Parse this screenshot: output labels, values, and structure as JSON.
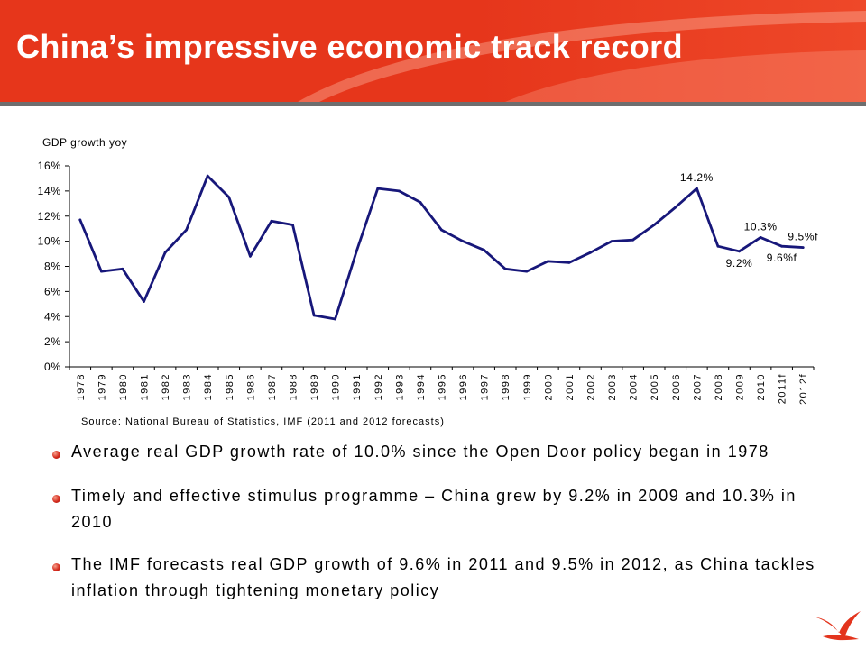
{
  "slide": {
    "title": "China’s impressive economic track record"
  },
  "chart_data": {
    "type": "line",
    "ylabel": "GDP growth yoy",
    "categories": [
      "1978",
      "1979",
      "1980",
      "1981",
      "1982",
      "1983",
      "1984",
      "1985",
      "1986",
      "1987",
      "1988",
      "1989",
      "1990",
      "1991",
      "1992",
      "1993",
      "1994",
      "1995",
      "1996",
      "1997",
      "1998",
      "1999",
      "2000",
      "2001",
      "2002",
      "2003",
      "2004",
      "2005",
      "2006",
      "2007",
      "2008",
      "2009",
      "2010",
      "2011f",
      "2012f"
    ],
    "values": [
      11.7,
      7.6,
      7.8,
      5.2,
      9.1,
      10.9,
      15.2,
      13.5,
      8.8,
      11.6,
      11.3,
      4.1,
      3.8,
      9.2,
      14.2,
      14.0,
      13.1,
      10.9,
      10.0,
      9.3,
      7.8,
      7.6,
      8.4,
      8.3,
      9.1,
      10.0,
      10.1,
      11.3,
      12.7,
      14.2,
      9.6,
      9.2,
      10.3,
      9.6,
      9.5
    ],
    "ylim": [
      0,
      16
    ],
    "yticks": [
      {
        "value": 0,
        "label": "0%"
      },
      {
        "value": 2,
        "label": "2%"
      },
      {
        "value": 4,
        "label": "4%"
      },
      {
        "value": 6,
        "label": "6%"
      },
      {
        "value": 8,
        "label": "8%"
      },
      {
        "value": 10,
        "label": "10%"
      },
      {
        "value": 12,
        "label": "12%"
      },
      {
        "value": 14,
        "label": "14%"
      },
      {
        "value": 16,
        "label": "16%"
      }
    ],
    "data_labels": [
      {
        "category": "2007",
        "text": "14.2%",
        "position": "above"
      },
      {
        "category": "2009",
        "text": "9.2%",
        "position": "below"
      },
      {
        "category": "2010",
        "text": "10.3%",
        "position": "above"
      },
      {
        "category": "2011f",
        "text": "9.6%f",
        "position": "below"
      },
      {
        "category": "2012f",
        "text": "9.5%f",
        "position": "above"
      }
    ],
    "grid": false,
    "source": "Source: National Bureau of Statistics, IMF (2011 and 2012 forecasts)"
  },
  "bullets": [
    {
      "lines": [
        "Average real GDP growth rate of 10.0% since the Open Door policy began in 1978"
      ]
    },
    {
      "lines": [
        "Timely and effective stimulus programme – China grew by 9.2% in 2009 and 10.3% in",
        "2010"
      ]
    },
    {
      "lines": [
        "The IMF forecasts real GDP growth of 9.6% in 2011 and 9.5% in 2012, as China tackles",
        "inflation through tightening monetary policy"
      ]
    }
  ],
  "icons": {
    "bullet": "bullet-dot-icon",
    "logo": "bird-logo-icon",
    "header_decoration": "swoosh-decoration"
  },
  "colors": {
    "header_red": "#e6361b",
    "divider_grey": "#6e6e6e",
    "line_navy": "#17177a",
    "bullet_red": "#d42a1c",
    "logo_red": "#e3341d"
  }
}
